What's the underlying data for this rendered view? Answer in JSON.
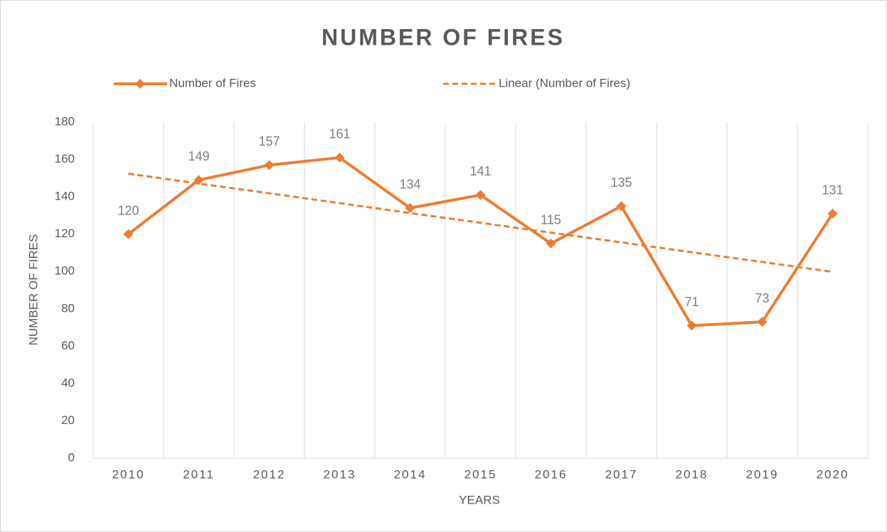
{
  "chart_data": {
    "type": "line",
    "title": "NUMBER OF FIRES",
    "x_label": "YEARS",
    "y_label": "NUMBER OF FIRES",
    "categories": [
      "2010",
      "2011",
      "2012",
      "2013",
      "2014",
      "2015",
      "2016",
      "2017",
      "2018",
      "2019",
      "2020"
    ],
    "series": [
      {
        "name": "Number of Fires",
        "color": "#ed7d31",
        "values": [
          120,
          149,
          157,
          161,
          134,
          141,
          115,
          135,
          71,
          73,
          131
        ],
        "data_labels": true,
        "marker": "diamond"
      },
      {
        "name": "Linear (Number of Fires)",
        "color": "#ed7d31",
        "dashed": true,
        "values": [
          152.4,
          147.1,
          141.9,
          136.6,
          131.3,
          126.1,
          120.8,
          115.6,
          110.3,
          105.1,
          99.8
        ]
      }
    ],
    "ylim": [
      0,
      180
    ],
    "yticks": [
      0,
      20,
      40,
      60,
      80,
      100,
      120,
      140,
      160,
      180
    ],
    "grid": "x",
    "legend": "top"
  }
}
